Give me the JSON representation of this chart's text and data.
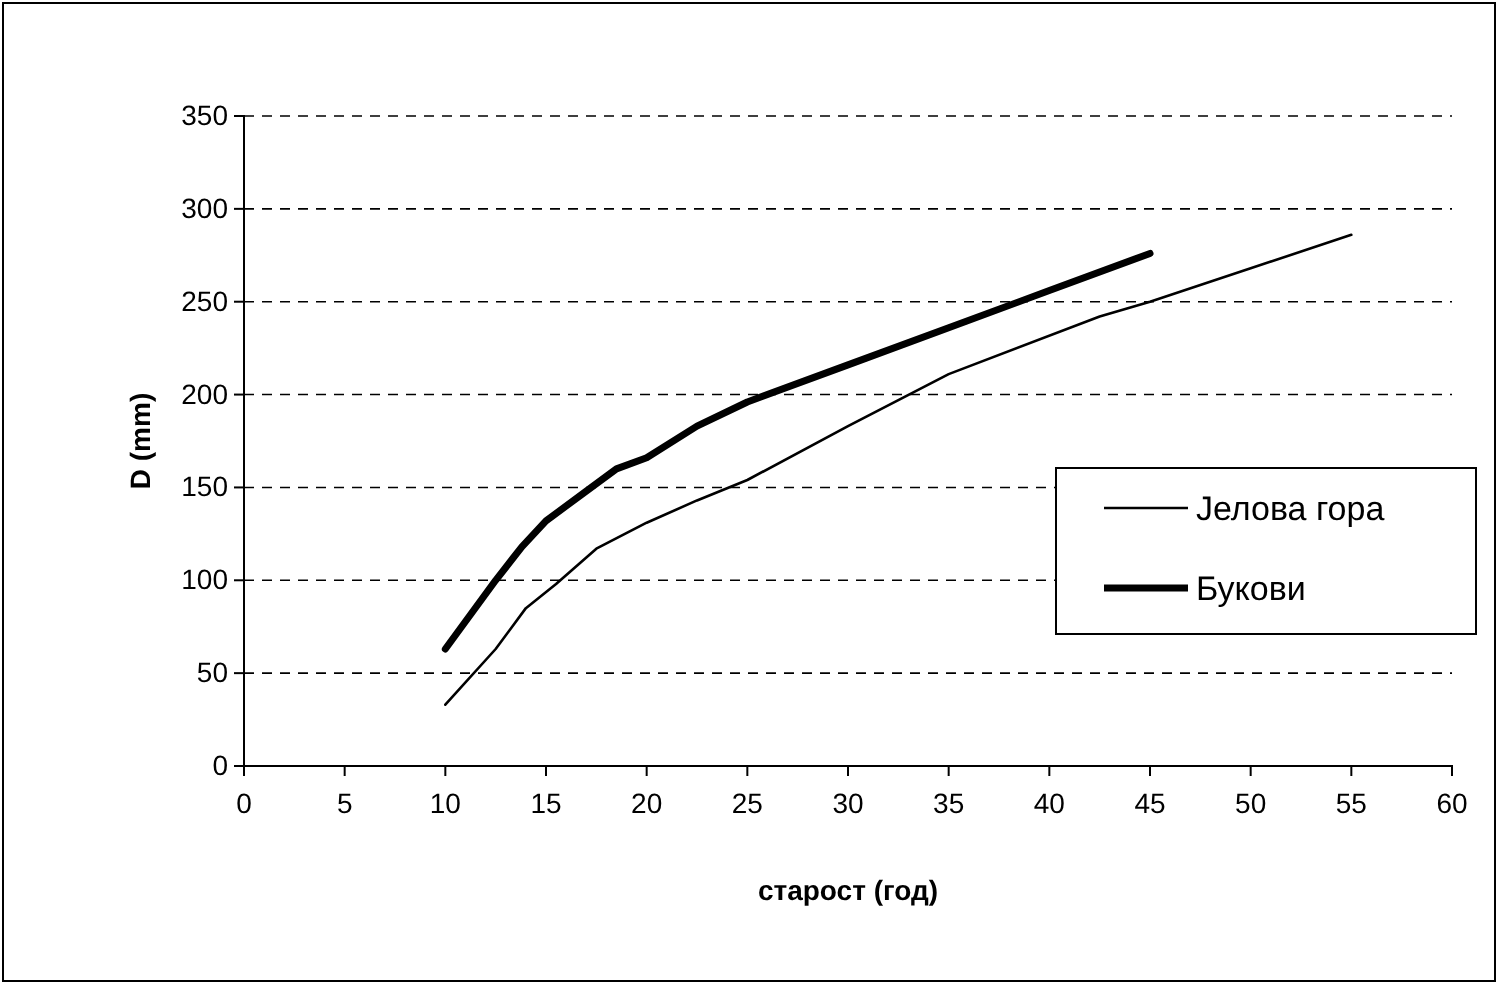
{
  "chart_data": {
    "type": "line",
    "xlabel": "старост (год)",
    "ylabel": "D (mm)",
    "xlim": [
      0,
      60
    ],
    "xticks": [
      0,
      5,
      10,
      15,
      20,
      25,
      30,
      35,
      40,
      45,
      50,
      55,
      60
    ],
    "ylim": [
      0,
      350
    ],
    "yticks": [
      0,
      50,
      100,
      150,
      200,
      250,
      300,
      350
    ],
    "grid": "y",
    "legend": "right",
    "line_style": "solid",
    "marker": "none",
    "series": [
      {
        "name": "Јелова гора",
        "color": "#000000",
        "x": [
          10,
          12.5,
          14,
          15.5,
          17.5,
          20,
          22.5,
          25,
          30,
          35,
          42.5,
          45,
          50,
          55
        ],
        "values": [
          33,
          63,
          85,
          98,
          117,
          131,
          143,
          154,
          183,
          211,
          242,
          250,
          268,
          286
        ]
      },
      {
        "name": "Букови",
        "color": "#000000",
        "x": [
          10,
          12.5,
          13.8,
          15,
          17,
          18.5,
          20,
          22.5,
          25,
          30,
          35,
          40,
          45
        ],
        "values": [
          63,
          100,
          118,
          132,
          148,
          160,
          166,
          183,
          196,
          216,
          236,
          256,
          276
        ]
      }
    ]
  }
}
